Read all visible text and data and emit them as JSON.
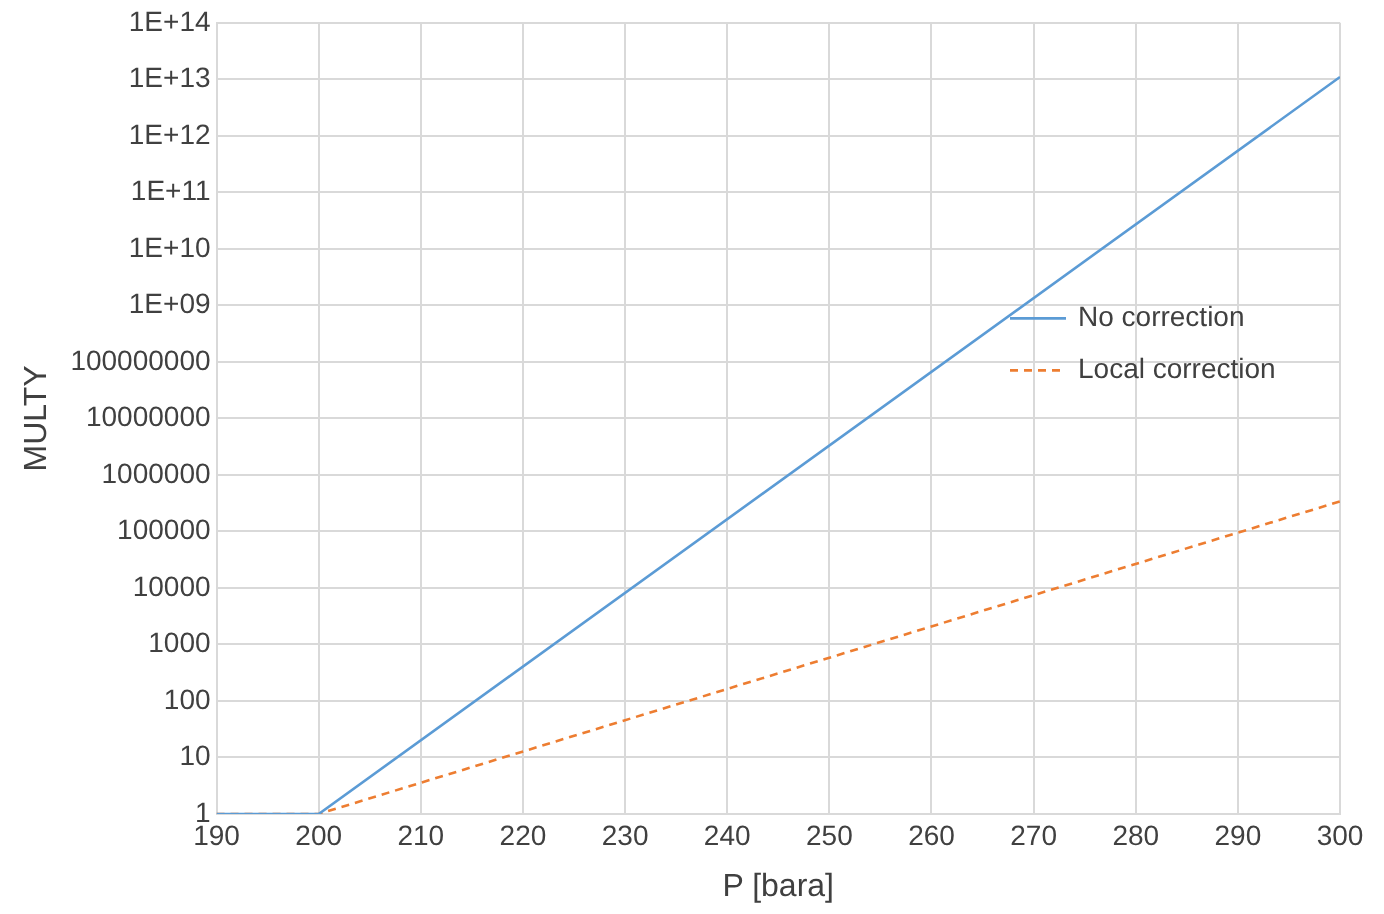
{
  "chart_data": {
    "type": "line",
    "xlabel": "P [bara]",
    "ylabel": "MULTY",
    "log": "y",
    "grid": true,
    "legend": "right",
    "marker": "none",
    "xlim": [
      190,
      300
    ],
    "xticks": [
      190,
      200,
      210,
      220,
      230,
      240,
      250,
      260,
      270,
      280,
      290,
      300
    ],
    "ylim": [
      1,
      100000000000000
    ],
    "yticks": [
      1,
      10,
      100,
      1000,
      10000,
      100000,
      1000000,
      10000000,
      100000000,
      {
        "value": 1000000000,
        "label": "1E+09"
      },
      {
        "value": 10000000000,
        "label": "1E+10"
      },
      {
        "value": 100000000000,
        "label": "1E+11"
      },
      {
        "value": 1000000000000,
        "label": "1E+12"
      },
      {
        "value": 10000000000000,
        "label": "1E+13"
      },
      {
        "value": 100000000000000,
        "label": "1E+14"
      }
    ],
    "series": [
      {
        "name": "No correction",
        "color": "#5b9bd5",
        "line_style": "solid",
        "x": [
          190,
          200,
          300
        ],
        "values": [
          1,
          1,
          11000000000000
        ]
      },
      {
        "name": "Local correction",
        "color": "#ed7d31",
        "line_style": "dashed",
        "x": [
          190,
          200,
          300
        ],
        "values": [
          1,
          1,
          340000
        ]
      }
    ]
  }
}
